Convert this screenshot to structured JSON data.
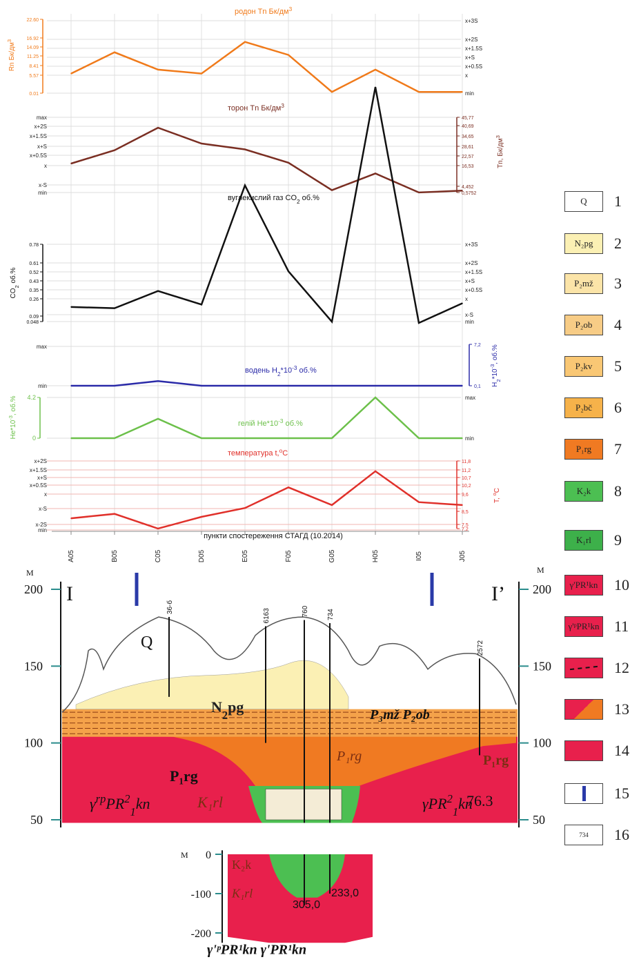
{
  "chart_data": {
    "type": "line",
    "x_categories": [
      "A05",
      "B05",
      "C05",
      "D05",
      "E05",
      "F05",
      "G05",
      "H05",
      "I05",
      "J05"
    ],
    "x_label": "пункти спостереження СТАГД (10.2014)",
    "panels": [
      {
        "id": "radon",
        "title": "родон Tn Бк/дм",
        "title_sup": "3",
        "ylabel": "Rn Бк/дм",
        "ylabel_sup": "3",
        "color": "#f07a1a",
        "ticks_left": [
          "22.60",
          "16.92",
          "14.09",
          "11.25",
          "8.41",
          "5.57",
          "0.01"
        ],
        "stats_right": [
          "x+3S",
          "x+2S",
          "x+1.5S",
          "x+S",
          "x+0.5S",
          "x",
          "min"
        ],
        "values": [
          6.0,
          12.5,
          7.2,
          6.0,
          15.7,
          11.7,
          0.4,
          7.2,
          0.4,
          0.4
        ]
      },
      {
        "id": "thoron",
        "title": "торон Tn Бк/дм",
        "title_sup": "3",
        "ylabel": "Tn, Бк/дм",
        "ylabel_sup": "3",
        "color": "#7a2e22",
        "stats_left": [
          "max",
          "x+2S",
          "x+1.5S",
          "x+S",
          "x+0.5S",
          "x",
          "x-S",
          "min"
        ],
        "ticks_right": [
          "45,77",
          "40,69",
          "34,65",
          "28,61",
          "22,57",
          "16,53",
          "4,452",
          "0,5752"
        ],
        "values": [
          18.0,
          26.0,
          39.5,
          30.0,
          26.5,
          18.5,
          2.0,
          12.0,
          0.6,
          1.7
        ]
      },
      {
        "id": "co2",
        "title": "вуглекислий газ CO",
        "title_sub": "2",
        "title_tail": " об.%",
        "ylabel": "CO",
        "ylabel_sub": "2",
        "ylabel_tail": " об.%",
        "color": "#111111",
        "ticks_left": [
          "0.78",
          "0.61",
          "0.52",
          "0.43",
          "0.35",
          "0.26",
          "0.09",
          "0.048"
        ],
        "stats_right": [
          "x+3S",
          "x+2S",
          "x+1.5S",
          "x+S",
          "x+0.5S",
          "x",
          "x-S",
          "min"
        ],
        "values": [
          0.13,
          0.12,
          0.26,
          0.15,
          1.12,
          0.42,
          0.01,
          1.92,
          0.0,
          0.16
        ]
      },
      {
        "id": "hydrogen",
        "title": "водень H",
        "title_sub": "2",
        "title_tail": "*10",
        "title_sup": "-3",
        "title_end": " об.%",
        "ylabel": "H",
        "ylabel_sub": "2",
        "ylabel_tail": "*10",
        "ylabel_sup": "-3",
        "ylabel_end": ", об.%",
        "color": "#2a2aa8",
        "stats_left": [
          "max",
          "min"
        ],
        "ticks_right": [
          "7,2",
          "0,1"
        ],
        "values": [
          0.1,
          0.1,
          0.9,
          0.1,
          0.1,
          0.1,
          0.1,
          0.1,
          0.1,
          0.1
        ]
      },
      {
        "id": "helium",
        "title": "гелій He*10",
        "title_sup": "-3",
        "title_tail": " об.%",
        "ylabel": "He*10",
        "ylabel_sup": "-3",
        "ylabel_tail": ", об.%",
        "color": "#6cc04a",
        "ticks_left": [
          "4.2",
          "0"
        ],
        "stats_right": [
          "max",
          "min"
        ],
        "values": [
          0,
          0,
          2.0,
          0,
          0,
          0,
          0,
          4.2,
          0,
          0
        ]
      },
      {
        "id": "temperature",
        "title": "температура t,",
        "title_sup": "o",
        "title_tail": "C",
        "ylabel": "T, ",
        "ylabel_sup": "o",
        "ylabel_tail": "C",
        "color": "#e0302a",
        "stats_left": [
          "x+2S",
          "x+1.5S",
          "x+S",
          "x+0.5S",
          "x",
          "x-S",
          "x-2S",
          "min"
        ],
        "ticks_right": [
          "11,8",
          "11,2",
          "10,7",
          "10,2",
          "9,6",
          "8,5",
          "7,5",
          "7,2"
        ],
        "values": [
          7.9,
          8.2,
          7.2,
          8.0,
          8.6,
          10.0,
          8.8,
          11.1,
          9.0,
          8.8
        ]
      }
    ]
  },
  "section": {
    "elev_label": "М",
    "left_ticks": [
      "200",
      "150",
      "100",
      "50"
    ],
    "right_ticks": [
      "200",
      "150",
      "100",
      "50"
    ],
    "profile_start": "I",
    "profile_end": "I’",
    "wells": [
      "36-б",
      "6163",
      "760",
      "734",
      "2572"
    ],
    "units": [
      "Q",
      "N₂pg",
      "P₃mž P₂ob",
      "P₁rg",
      "K₁rl",
      "P₁rg",
      "76.3"
    ],
    "labels": {
      "gamma_left": "γ",
      "gamma_left_sup": "rp",
      "gamma_left_tail": "PR",
      "gamma_left_sup2": "2",
      "gamma_left_sub": "1",
      "gamma_left_end": "kn",
      "gamma_right": "γ",
      "gamma_right_tail": "PR",
      "gamma_right_sup": "2",
      "gamma_right_sub": "1",
      "gamma_right_end": "kn",
      "n2pg": "N",
      "n2pg_sub": "2",
      "n2pg_tail": "pg",
      "p3": "P₃mž P₂ob",
      "p1rg_left": "P₁rg",
      "p1rg_right": "P₁rg",
      "p1rg_mid": "P₁rg",
      "k1rl": "K₁rl",
      "elev": "76.3",
      "q": "Q"
    }
  },
  "inset": {
    "elev_label": "М",
    "ticks": [
      "0",
      "-100",
      "-200"
    ],
    "depth_a": "305,0",
    "depth_b": "233,0",
    "k2k": "K₂k",
    "k1rl": "K₁rl",
    "bottom_label": "γ'ᵖPR¹kn γ'PR¹kn"
  },
  "legend": [
    {
      "num": "1",
      "label": "Q",
      "fill": "#ffffff"
    },
    {
      "num": "2",
      "label": "N₂pg",
      "fill": "#fbf0b4"
    },
    {
      "num": "3",
      "label": "P₂mž",
      "fill": "#fbe4a8"
    },
    {
      "num": "4",
      "label": "P₂ob",
      "fill": "#f7cc86"
    },
    {
      "num": "5",
      "label": "P₂kv",
      "fill": "#f9c774"
    },
    {
      "num": "6",
      "label": "P₂bč",
      "fill": "#f6b24a"
    },
    {
      "num": "7",
      "label": "P₁rg",
      "fill": "#f07a22"
    },
    {
      "num": "8",
      "label": "K₂k",
      "fill": "#4cbf52"
    },
    {
      "num": "9",
      "label": "K₁rl",
      "fill": "#3db04a"
    },
    {
      "num": "10",
      "label": "γ'PR¹kn",
      "fill": "#e8204c"
    },
    {
      "num": "11",
      "label": "γ'ᵖPR¹kn",
      "fill": "#e8204c"
    },
    {
      "num": "12",
      "label": "",
      "fill": "#e8204c"
    },
    {
      "num": "13",
      "label": "",
      "fill": "#f07a22"
    },
    {
      "num": "14",
      "label": "",
      "fill": "#e8204c"
    },
    {
      "num": "15",
      "label": "",
      "fill": "#ffffff"
    },
    {
      "num": "16",
      "label": "734",
      "fill": "#ffffff"
    }
  ]
}
